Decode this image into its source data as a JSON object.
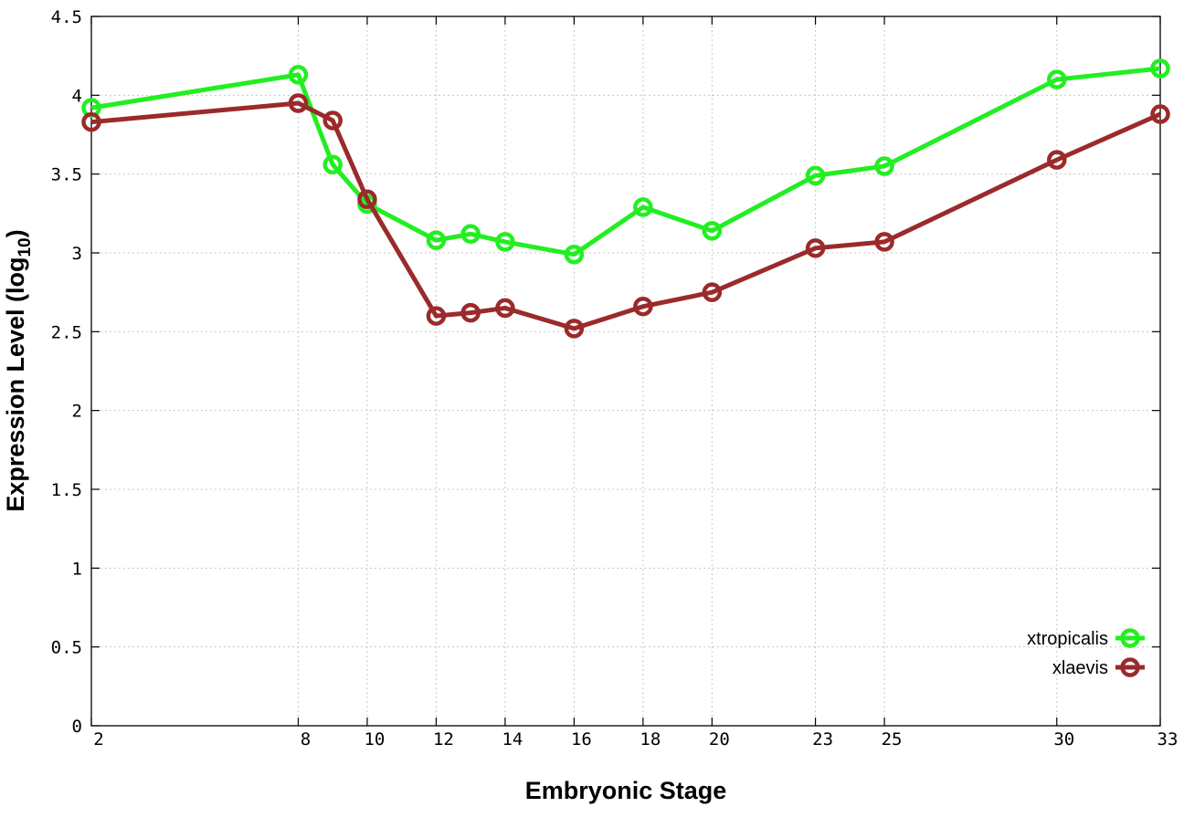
{
  "chart_data": {
    "type": "line",
    "xlabel": "Embryonic Stage",
    "ylabel_main": "Expression Level (log",
    "ylabel_sub": "10",
    "ylabel_close": ")",
    "xlim": [
      2,
      33
    ],
    "ylim": [
      0,
      4.5
    ],
    "x_ticks": [
      2,
      8,
      10,
      12,
      14,
      16,
      18,
      20,
      23,
      25,
      30,
      33
    ],
    "x_tick_labels": [
      "2",
      "8",
      "10",
      "12",
      "14",
      "16",
      "18",
      "20",
      "23",
      "25",
      "30",
      "33"
    ],
    "y_ticks": [
      0,
      0.5,
      1,
      1.5,
      2,
      2.5,
      3,
      3.5,
      4,
      4.5
    ],
    "y_tick_labels": [
      "0",
      "0.5",
      "1",
      "1.5",
      "2",
      "2.5",
      "3",
      "3.5",
      "4",
      "4.5"
    ],
    "grid": true,
    "legend_position": "bottom-right",
    "series": [
      {
        "name": "xtropicalis",
        "color": "#22ee22",
        "x": [
          2,
          8,
          9,
          10,
          12,
          13,
          14,
          16,
          18,
          20,
          23,
          25,
          30,
          33
        ],
        "y": [
          3.92,
          4.13,
          3.56,
          3.31,
          3.08,
          3.12,
          3.07,
          2.99,
          3.29,
          3.14,
          3.49,
          3.55,
          4.1,
          4.17
        ]
      },
      {
        "name": "xlaevis",
        "color": "#9b2a2a",
        "x": [
          2,
          8,
          9,
          10,
          12,
          13,
          14,
          16,
          18,
          20,
          23,
          25,
          30,
          33
        ],
        "y": [
          3.83,
          3.95,
          3.84,
          3.34,
          2.6,
          2.62,
          2.65,
          2.52,
          2.66,
          2.75,
          3.03,
          3.07,
          3.59,
          3.88
        ]
      }
    ]
  }
}
